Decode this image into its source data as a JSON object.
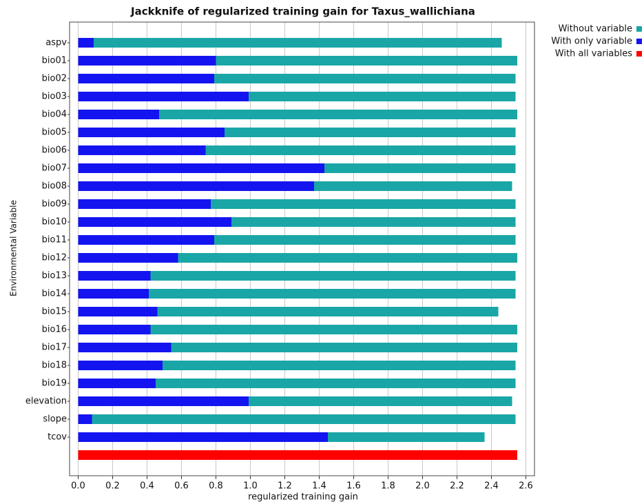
{
  "chart_data": {
    "type": "barh",
    "title": "Jackknife of regularized training gain for Taxus_wallichiana",
    "x_label": "regularized training gain",
    "y_label": "Environmental Variable",
    "categories": [
      "aspv",
      "bio01",
      "bio02",
      "bio03",
      "bio04",
      "bio05",
      "bio06",
      "bio07",
      "bio08",
      "bio09",
      "bio10",
      "bio11",
      "bio12",
      "bio13",
      "bio14",
      "bio15",
      "bio16",
      "bio17",
      "bio18",
      "bio19",
      "elevation",
      "slope",
      "tcov",
      null
    ],
    "series": [
      {
        "name": "Without variable",
        "color": "#1aa6a6",
        "values": [
          2.46,
          2.55,
          2.54,
          2.54,
          2.55,
          2.54,
          2.54,
          2.54,
          2.52,
          2.54,
          2.54,
          2.54,
          2.55,
          2.54,
          2.54,
          2.44,
          2.55,
          2.55,
          2.54,
          2.54,
          2.52,
          2.54,
          2.36,
          null
        ]
      },
      {
        "name": "With only variable",
        "color": "#1414f0",
        "values": [
          0.09,
          0.8,
          0.79,
          0.99,
          0.47,
          0.85,
          0.74,
          1.43,
          1.37,
          0.77,
          0.89,
          0.79,
          0.58,
          0.42,
          0.41,
          0.46,
          0.42,
          0.54,
          0.49,
          0.45,
          0.99,
          0.08,
          1.45,
          null
        ]
      },
      {
        "name": "With all variables",
        "color": "#ff0000",
        "values": [
          null,
          null,
          null,
          null,
          null,
          null,
          null,
          null,
          null,
          null,
          null,
          null,
          null,
          null,
          null,
          null,
          null,
          null,
          null,
          null,
          null,
          null,
          null,
          2.55
        ]
      }
    ],
    "xlim": [
      -0.05,
      2.65
    ],
    "xticks": [
      {
        "value": 0,
        "label": "0.0"
      },
      0.2,
      0.4,
      0.6,
      0.8,
      {
        "value": 1,
        "label": "1.0"
      },
      1.2,
      1.4,
      1.6,
      1.8,
      {
        "value": 2,
        "label": "2.0"
      },
      2.2,
      2.4,
      2.6
    ],
    "grid": true,
    "legend": "top-right"
  }
}
